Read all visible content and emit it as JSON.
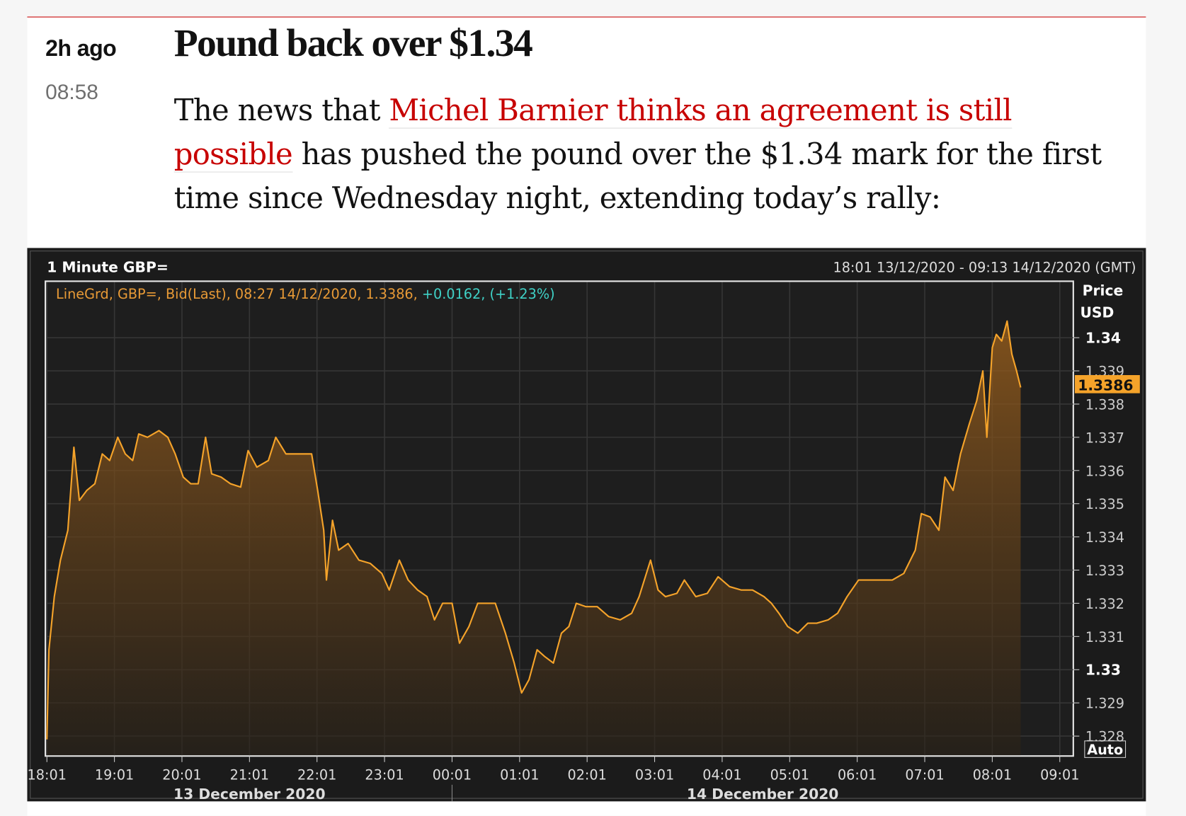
{
  "post": {
    "time_ago": "2h ago",
    "time": "08:58",
    "title": "Pound back over $1.34",
    "body": {
      "before": "The news that ",
      "link": "Michel Barnier thinks an agreement is still possible",
      "after": " has pushed the pound over the $1.34 mark for the first time since Wednesday night, extending today’s rally:"
    }
  },
  "chart_data": {
    "type": "line",
    "title": "1 Minute GBP=",
    "subtitle": "18:01 13/12/2020 - 09:13 14/12/2020 (GMT)",
    "legend": "LineGrd, GBP=, Bid(Last), 08:27 14/12/2020, 1.3386, ",
    "legend_change": "+0.0162, (+1.23%)",
    "y_label": "Price",
    "y_unit": "USD",
    "last_value": 1.3386,
    "scale_mode": "Auto",
    "dates": [
      "13 December 2020",
      "14 December 2020"
    ],
    "color": "#f5a32a",
    "grid": true,
    "x": [
      0,
      0.03,
      0.11,
      0.2,
      0.31,
      0.4,
      0.48,
      0.59,
      0.71,
      0.82,
      0.93,
      1.05,
      1.16,
      1.27,
      1.36,
      1.49,
      1.66,
      1.79,
      1.9,
      2.02,
      2.13,
      2.24,
      2.35,
      2.44,
      2.58,
      2.72,
      2.87,
      2.98,
      3.11,
      3.28,
      3.39,
      3.54,
      3.73,
      3.92,
      4.01,
      4.1,
      4.14,
      4.23,
      4.32,
      4.46,
      4.62,
      4.79,
      4.96,
      5.07,
      5.22,
      5.35,
      5.49,
      5.63,
      5.74,
      5.86,
      6.0,
      6.11,
      6.25,
      6.38,
      6.53,
      6.64,
      6.79,
      6.92,
      7.03,
      7.14,
      7.26,
      7.37,
      7.5,
      7.62,
      7.73,
      7.84,
      7.98,
      8.15,
      8.32,
      8.49,
      8.66,
      8.77,
      8.94,
      9.05,
      9.16,
      9.33,
      9.44,
      9.61,
      9.78,
      9.94,
      10.11,
      10.28,
      10.45,
      10.62,
      10.73,
      10.84,
      10.97,
      11.12,
      11.27,
      11.4,
      11.57,
      11.71,
      11.85,
      12.02,
      12.18,
      12.35,
      12.52,
      12.69,
      12.86,
      12.95,
      13.08,
      13.21,
      13.3,
      13.42,
      13.53,
      13.66,
      13.77,
      13.86,
      13.92,
      14.0,
      14.06,
      14.14,
      14.22,
      14.29,
      14.36,
      14.42
    ],
    "values": [
      1.3279,
      1.3306,
      1.3322,
      1.3333,
      1.3342,
      1.3367,
      1.3351,
      1.3354,
      1.3356,
      1.3365,
      1.3363,
      1.337,
      1.3365,
      1.3363,
      1.3371,
      1.337,
      1.3372,
      1.337,
      1.3365,
      1.3358,
      1.3356,
      1.3356,
      1.337,
      1.3359,
      1.3358,
      1.3356,
      1.3355,
      1.3366,
      1.3361,
      1.3363,
      1.337,
      1.3365,
      1.3365,
      1.3365,
      1.3354,
      1.3342,
      1.3327,
      1.3345,
      1.3336,
      1.3338,
      1.3333,
      1.3332,
      1.3329,
      1.3324,
      1.3333,
      1.3327,
      1.3324,
      1.3322,
      1.3315,
      1.332,
      1.332,
      1.3308,
      1.3313,
      1.332,
      1.332,
      1.332,
      1.3311,
      1.3302,
      1.3293,
      1.3297,
      1.3306,
      1.3304,
      1.3302,
      1.3311,
      1.3313,
      1.332,
      1.3319,
      1.3319,
      1.3316,
      1.3315,
      1.3317,
      1.3322,
      1.3333,
      1.3324,
      1.3322,
      1.3323,
      1.3327,
      1.3322,
      1.3323,
      1.3328,
      1.3325,
      1.3324,
      1.3324,
      1.3322,
      1.332,
      1.3317,
      1.3313,
      1.3311,
      1.3314,
      1.3314,
      1.3315,
      1.3317,
      1.3322,
      1.3327,
      1.3327,
      1.3327,
      1.3327,
      1.3329,
      1.3336,
      1.3347,
      1.3346,
      1.3342,
      1.3358,
      1.3354,
      1.3365,
      1.3374,
      1.3381,
      1.339,
      1.337,
      1.3397,
      1.3401,
      1.3399,
      1.3405,
      1.3395,
      1.339,
      1.3385
    ],
    "xlim": [
      0,
      15.2
    ],
    "ylim": [
      1.3274,
      1.3417
    ],
    "xticks": [
      {
        "value": 0,
        "label": "18:01"
      },
      {
        "value": 1,
        "label": "19:01"
      },
      {
        "value": 2,
        "label": "20:01"
      },
      {
        "value": 3,
        "label": "21:01"
      },
      {
        "value": 4,
        "label": "22:01"
      },
      {
        "value": 5,
        "label": "23:01"
      },
      {
        "value": 6,
        "label": "00:01"
      },
      {
        "value": 7,
        "label": "01:01"
      },
      {
        "value": 8,
        "label": "02:01"
      },
      {
        "value": 9,
        "label": "03:01"
      },
      {
        "value": 10,
        "label": "04:01"
      },
      {
        "value": 11,
        "label": "05:01"
      },
      {
        "value": 12,
        "label": "06:01"
      },
      {
        "value": 13,
        "label": "07:01"
      },
      {
        "value": 14,
        "label": "08:01"
      },
      {
        "value": 15,
        "label": "09:01"
      }
    ],
    "yticks": [
      1.328,
      1.329,
      1.33,
      1.331,
      1.332,
      1.333,
      1.334,
      1.335,
      1.336,
      1.337,
      1.338,
      1.339,
      1.34
    ]
  }
}
